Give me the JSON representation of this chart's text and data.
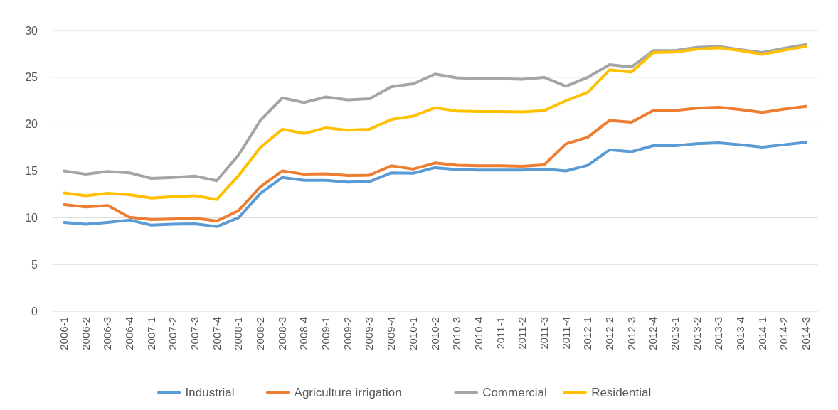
{
  "chart_data": {
    "type": "line",
    "categories": [
      "2006-1",
      "2006-2",
      "2006-3",
      "2006-4",
      "2007-1",
      "2007-2",
      "2007-3",
      "2007-4",
      "2008-1",
      "2008-2",
      "2008-3",
      "2008-4",
      "2009-1",
      "2009-2",
      "2009-3",
      "2009-4",
      "2010-1",
      "2010-2",
      "2010-3",
      "2010-4",
      "2011-1",
      "2011-2",
      "2011-3",
      "2011-4",
      "2012-1",
      "2012-2",
      "2012-3",
      "2012-4",
      "2013-1",
      "2013-2",
      "2013-3",
      "2013-4",
      "2014-1",
      "2014-2",
      "2014-3"
    ],
    "series": [
      {
        "name": "Industrial",
        "color": "#5b9bd5",
        "values": [
          9.5,
          9.3,
          9.5,
          9.75,
          9.2,
          9.3,
          9.35,
          9.05,
          10.0,
          12.6,
          14.3,
          14.0,
          14.0,
          13.8,
          13.85,
          14.8,
          14.75,
          15.35,
          15.15,
          15.1,
          15.1,
          15.1,
          15.2,
          15.0,
          15.6,
          17.25,
          17.05,
          17.7,
          17.7,
          17.9,
          18.0,
          17.8,
          17.55,
          17.8,
          18.05
        ]
      },
      {
        "name": "Agriculture irrigation",
        "color": "#ed7d31",
        "values": [
          11.4,
          11.15,
          11.3,
          10.05,
          9.8,
          9.85,
          9.95,
          9.65,
          10.75,
          13.3,
          15.0,
          14.65,
          14.7,
          14.5,
          14.55,
          15.55,
          15.2,
          15.85,
          15.6,
          15.55,
          15.55,
          15.5,
          15.65,
          17.9,
          18.6,
          20.4,
          20.2,
          21.45,
          21.45,
          21.7,
          21.8,
          21.55,
          21.25,
          21.6,
          21.9
        ]
      },
      {
        "name": "Commercial",
        "color": "#a5a5a5",
        "values": [
          15.0,
          14.65,
          14.95,
          14.8,
          14.2,
          14.3,
          14.45,
          13.95,
          16.7,
          20.4,
          22.8,
          22.3,
          22.9,
          22.6,
          22.7,
          24.0,
          24.3,
          25.35,
          24.95,
          24.85,
          24.85,
          24.8,
          25.0,
          24.05,
          25.0,
          26.35,
          26.1,
          27.85,
          27.85,
          28.2,
          28.3,
          27.95,
          27.65,
          28.1,
          28.5
        ]
      },
      {
        "name": "Residential",
        "color": "#ffc000",
        "values": [
          12.65,
          12.35,
          12.6,
          12.45,
          12.1,
          12.25,
          12.35,
          11.95,
          14.5,
          17.5,
          19.45,
          19.0,
          19.6,
          19.35,
          19.45,
          20.5,
          20.85,
          21.75,
          21.4,
          21.35,
          21.35,
          21.3,
          21.45,
          22.5,
          23.4,
          25.8,
          25.55,
          27.65,
          27.7,
          28.0,
          28.15,
          27.85,
          27.45,
          27.9,
          28.3
        ]
      }
    ],
    "ylim": [
      0,
      30
    ],
    "yticks": [
      0,
      5,
      10,
      15,
      20,
      25,
      30
    ],
    "grid": "y",
    "legend": "bottom",
    "marker": "none",
    "line_style": "solid"
  }
}
